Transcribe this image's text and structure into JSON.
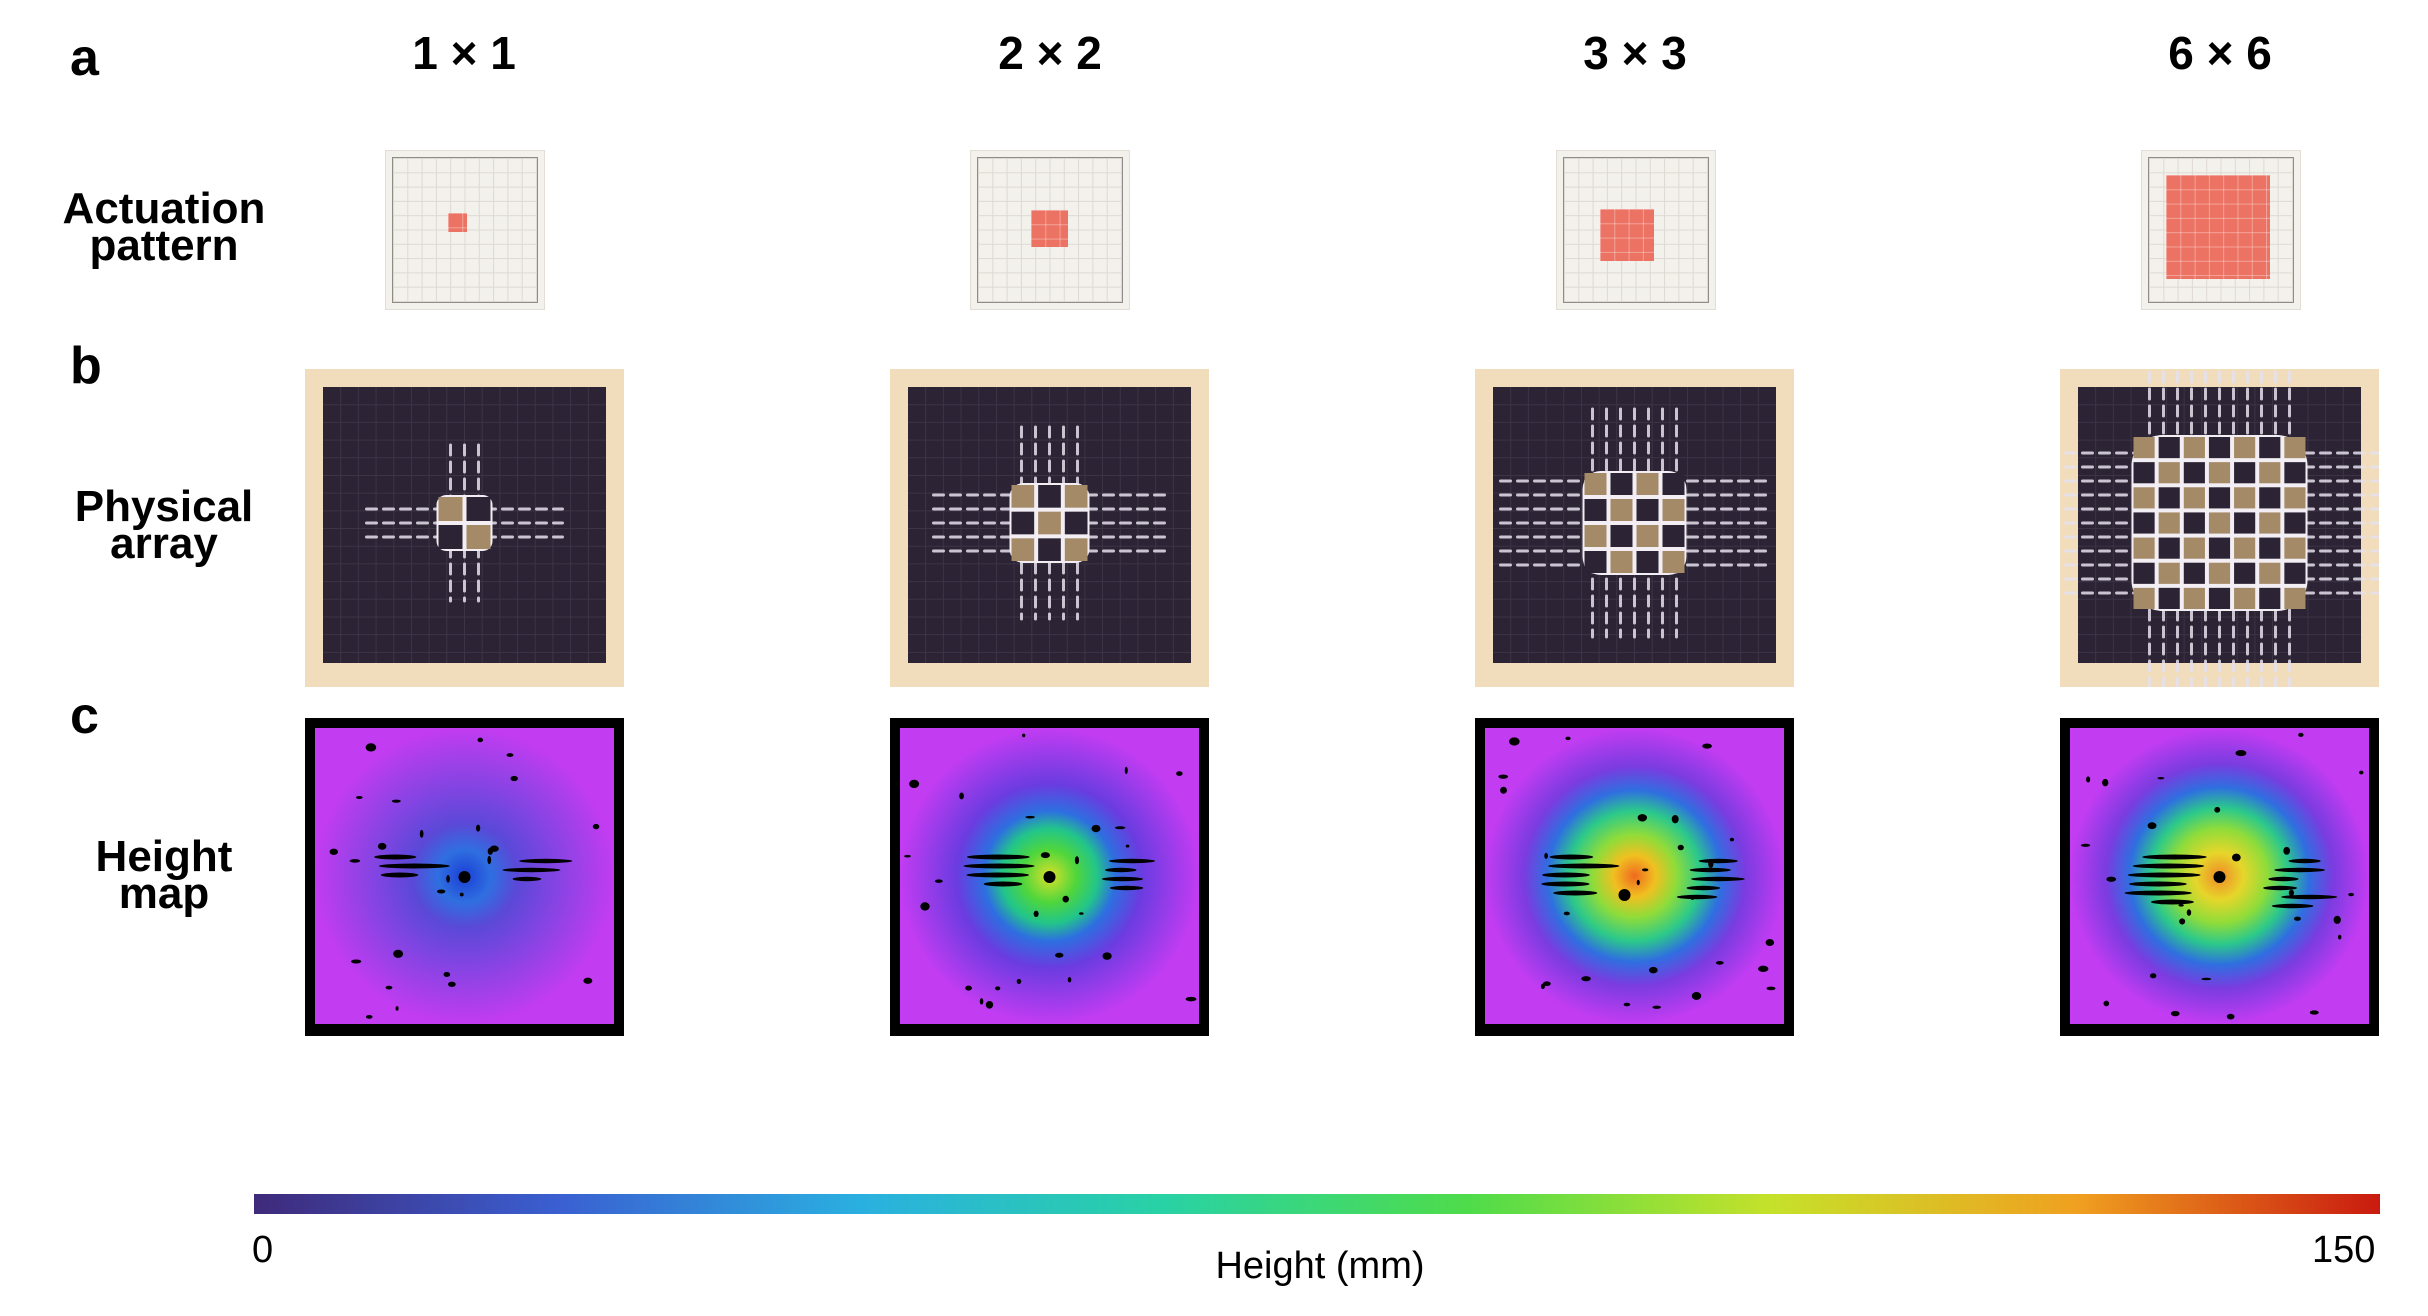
{
  "panels": {
    "a": "a",
    "b": "b",
    "c": "c"
  },
  "row_labels": {
    "actuation": [
      "Actuation",
      "pattern"
    ],
    "physical": [
      "Physical",
      "array"
    ],
    "height": [
      "Height",
      "map"
    ]
  },
  "columns": [
    {
      "title": "1 × 1",
      "n": 1
    },
    {
      "title": "2 × 2",
      "n": 2
    },
    {
      "title": "3 × 3",
      "n": 3
    },
    {
      "title": "6 × 6",
      "n": 6
    }
  ],
  "colors": {
    "actuated": "#ec7263",
    "grid_bg": "#f3f1ec",
    "array_dark": "#2c2434",
    "array_bg": "#f1dcbc"
  },
  "colorbar": {
    "label": "Height (mm)",
    "min": "0",
    "max": "150",
    "stops": [
      "#3f2a7a",
      "#3a5fd1",
      "#2ab0e0",
      "#29d2a4",
      "#4fdc4a",
      "#c6e12a",
      "#f0a020",
      "#c91a0f"
    ]
  }
}
